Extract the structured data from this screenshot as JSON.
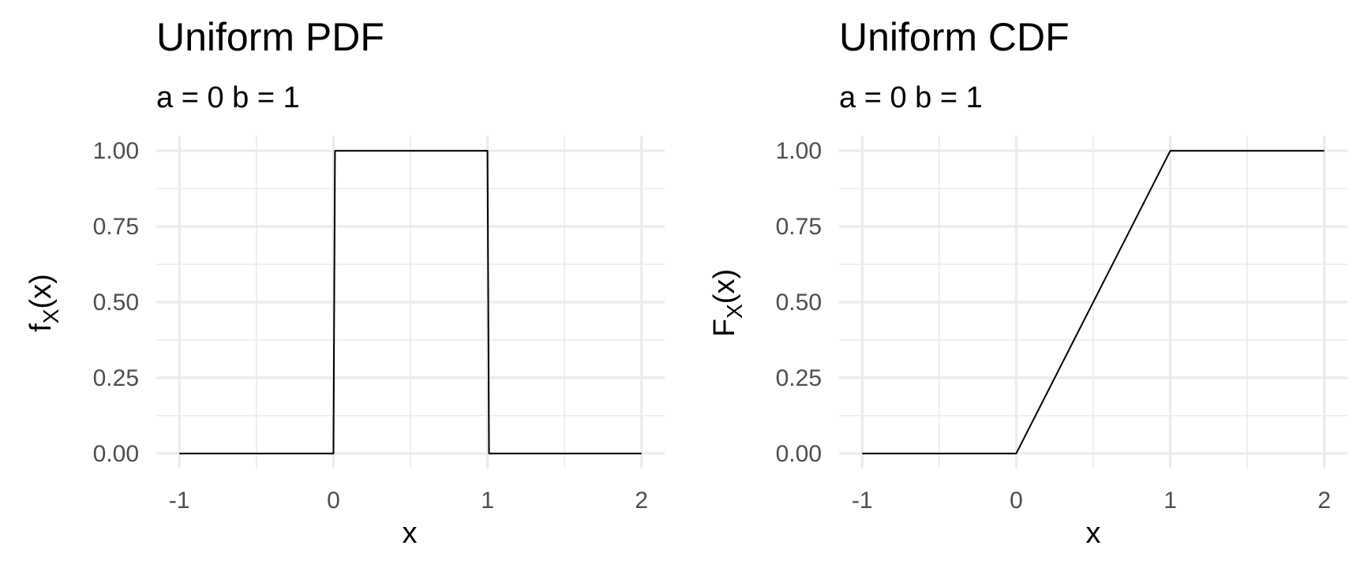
{
  "chart_data": [
    {
      "type": "line",
      "title": "Uniform PDF",
      "subtitle": "a = 0 b = 1",
      "xlabel": "x",
      "ylabel": "fX(x)",
      "ylabel_parts": {
        "base": "f",
        "sub": "X",
        "arg": "(x)"
      },
      "xlim": [
        -1,
        2
      ],
      "ylim": [
        0,
        1
      ],
      "x_ticks": [
        -1,
        0,
        1,
        2
      ],
      "x_tick_labels": [
        "-1",
        "0",
        "1",
        "2"
      ],
      "y_ticks": [
        0,
        0.25,
        0.5,
        0.75,
        1
      ],
      "y_tick_labels": [
        "0.00",
        "0.25",
        "0.50",
        "0.75",
        "1.00"
      ],
      "grid": true,
      "series": [
        {
          "name": "pdf",
          "x": [
            -1,
            0,
            0.01,
            1,
            1.01,
            2
          ],
          "y": [
            0,
            0,
            1,
            1,
            0,
            0
          ]
        }
      ]
    },
    {
      "type": "line",
      "title": "Uniform CDF",
      "subtitle": "a = 0 b = 1",
      "xlabel": "x",
      "ylabel": "FX(x)",
      "ylabel_parts": {
        "base": "F",
        "sub": "X",
        "arg": "(x)"
      },
      "xlim": [
        -1,
        2
      ],
      "ylim": [
        0,
        1
      ],
      "x_ticks": [
        -1,
        0,
        1,
        2
      ],
      "x_tick_labels": [
        "-1",
        "0",
        "1",
        "2"
      ],
      "y_ticks": [
        0,
        0.25,
        0.5,
        0.75,
        1
      ],
      "y_tick_labels": [
        "0.00",
        "0.25",
        "0.50",
        "0.75",
        "1.00"
      ],
      "grid": true,
      "series": [
        {
          "name": "cdf",
          "x": [
            -1,
            0,
            1,
            2
          ],
          "y": [
            0,
            0,
            1,
            1
          ]
        }
      ]
    }
  ]
}
